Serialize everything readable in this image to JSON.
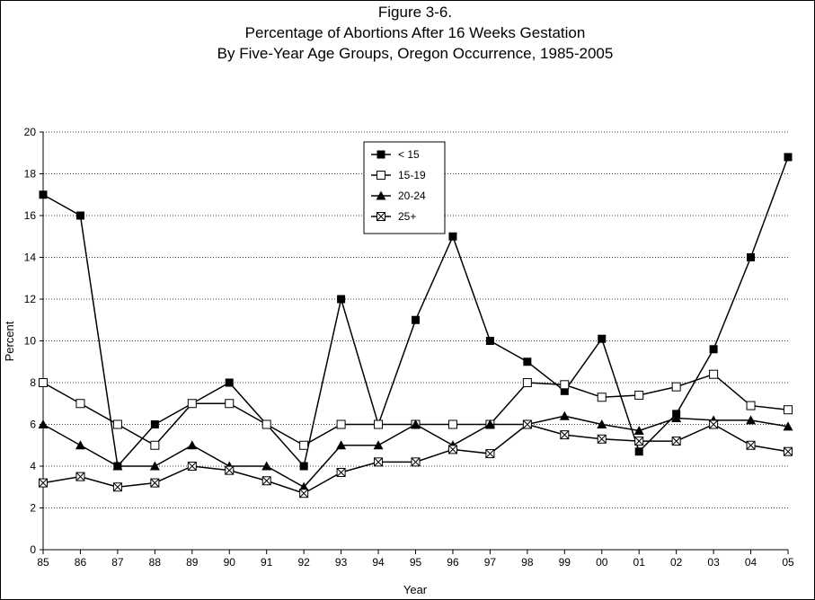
{
  "chart_data": {
    "type": "line",
    "title": [
      "Figure 3-6.",
      "Percentage of Abortions After 16 Weeks Gestation",
      "By Five-Year Age Groups, Oregon Occurrence, 1985-2005"
    ],
    "x_label": "Year",
    "y_label": "Percent",
    "categories": [
      "85",
      "86",
      "87",
      "88",
      "89",
      "90",
      "91",
      "92",
      "93",
      "94",
      "95",
      "96",
      "97",
      "98",
      "99",
      "00",
      "01",
      "02",
      "03",
      "04",
      "05"
    ],
    "ylim": [
      0,
      20
    ],
    "yticks": [
      0,
      2,
      4,
      6,
      8,
      10,
      12,
      14,
      16,
      18,
      20
    ],
    "grid": true,
    "legend": "top-center",
    "series": [
      {
        "name": "< 15",
        "color": "#000000",
        "marker": "square-filled",
        "values": [
          17,
          16,
          4,
          6,
          7,
          8,
          6,
          4,
          12,
          6,
          11,
          15,
          10,
          9,
          7.6,
          10.1,
          4.7,
          6.5,
          9.6,
          14,
          18.8
        ]
      },
      {
        "name": "15-19",
        "color": "#000000",
        "marker": "square-open",
        "values": [
          8,
          7,
          6,
          5,
          7,
          7,
          6,
          5,
          6,
          6,
          6,
          6,
          6,
          8,
          7.9,
          7.3,
          7.4,
          7.8,
          8.4,
          6.9,
          6.7
        ]
      },
      {
        "name": "20-24",
        "color": "#000000",
        "marker": "triangle-filled",
        "values": [
          6,
          5,
          4,
          4,
          5,
          4,
          4,
          3,
          5,
          5,
          6,
          5,
          6,
          6,
          6.4,
          6,
          5.7,
          6.3,
          6.2,
          6.2,
          5.9
        ]
      },
      {
        "name": "25+",
        "color": "#000000",
        "marker": "square-x",
        "values": [
          3.2,
          3.5,
          3.0,
          3.2,
          4.0,
          3.8,
          3.3,
          2.7,
          3.7,
          4.2,
          4.2,
          4.8,
          4.6,
          6.0,
          5.5,
          5.3,
          5.2,
          5.2,
          6.0,
          5.0,
          4.7
        ]
      }
    ]
  }
}
